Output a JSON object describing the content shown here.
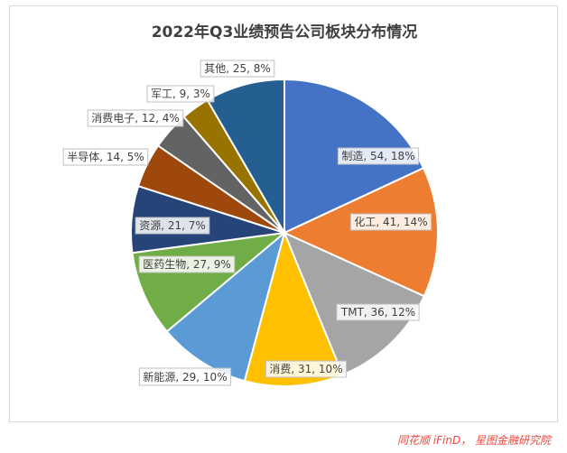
{
  "chart_data": {
    "type": "pie",
    "title": "2022年Q3业绩预告公司板块分布情况",
    "slices": [
      {
        "label": "制造, 54, 18%",
        "name": "制造",
        "value": 54,
        "percent": 18,
        "color": "#4472c4"
      },
      {
        "label": "化工, 41, 14%",
        "name": "化工",
        "value": 41,
        "percent": 14,
        "color": "#ed7d31"
      },
      {
        "label": "TMT, 36, 12%",
        "name": "TMT",
        "value": 36,
        "percent": 12,
        "color": "#a5a5a5"
      },
      {
        "label": "消费, 31, 10%",
        "name": "消费",
        "value": 31,
        "percent": 10,
        "color": "#ffc000"
      },
      {
        "label": "新能源, 29, 10%",
        "name": "新能源",
        "value": 29,
        "percent": 10,
        "color": "#5b9bd5"
      },
      {
        "label": "医药生物, 27, 9%",
        "name": "医药生物",
        "value": 27,
        "percent": 9,
        "color": "#70ad47"
      },
      {
        "label": "资源, 21, 7%",
        "name": "资源",
        "value": 21,
        "percent": 7,
        "color": "#264478"
      },
      {
        "label": "半导体, 14, 5%",
        "name": "半导体",
        "value": 14,
        "percent": 5,
        "color": "#9e480e"
      },
      {
        "label": "消费电子, 12, 4%",
        "name": "消费电子",
        "value": 12,
        "percent": 4,
        "color": "#636363"
      },
      {
        "label": "军工, 9, 3%",
        "name": "军工",
        "value": 9,
        "percent": 3,
        "color": "#997300"
      },
      {
        "label": "其他, 25, 8%",
        "name": "其他",
        "value": 25,
        "percent": 8,
        "color": "#255e91"
      }
    ]
  },
  "source": "同花顺 iFinD， 星图金融研究院"
}
